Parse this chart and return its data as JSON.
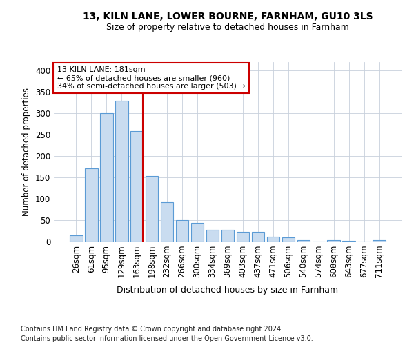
{
  "title_line1": "13, KILN LANE, LOWER BOURNE, FARNHAM, GU10 3LS",
  "title_line2": "Size of property relative to detached houses in Farnham",
  "xlabel": "Distribution of detached houses by size in Farnham",
  "ylabel": "Number of detached properties",
  "categories": [
    "26sqm",
    "61sqm",
    "95sqm",
    "129sqm",
    "163sqm",
    "198sqm",
    "232sqm",
    "266sqm",
    "300sqm",
    "334sqm",
    "369sqm",
    "403sqm",
    "437sqm",
    "471sqm",
    "506sqm",
    "540sqm",
    "574sqm",
    "608sqm",
    "643sqm",
    "677sqm",
    "711sqm"
  ],
  "values": [
    15,
    172,
    300,
    330,
    258,
    153,
    92,
    50,
    43,
    27,
    27,
    22,
    22,
    12,
    10,
    4,
    0,
    4,
    2,
    0,
    3
  ],
  "bar_color": "#c9dcf0",
  "bar_edge_color": "#5b9bd5",
  "vline_color": "#cc0000",
  "vline_x_index": 4,
  "annotation_line1": "13 KILN LANE: 181sqm",
  "annotation_line2": "← 65% of detached houses are smaller (960)",
  "annotation_line3": "34% of semi-detached houses are larger (503) →",
  "annotation_box_color": "#ffffff",
  "annotation_box_edge": "#cc0000",
  "footnote_line1": "Contains HM Land Registry data © Crown copyright and database right 2024.",
  "footnote_line2": "Contains public sector information licensed under the Open Government Licence v3.0.",
  "ylim": [
    0,
    420
  ],
  "yticks": [
    0,
    50,
    100,
    150,
    200,
    250,
    300,
    350,
    400
  ],
  "background_color": "#ffffff",
  "grid_color": "#c8d0dc"
}
